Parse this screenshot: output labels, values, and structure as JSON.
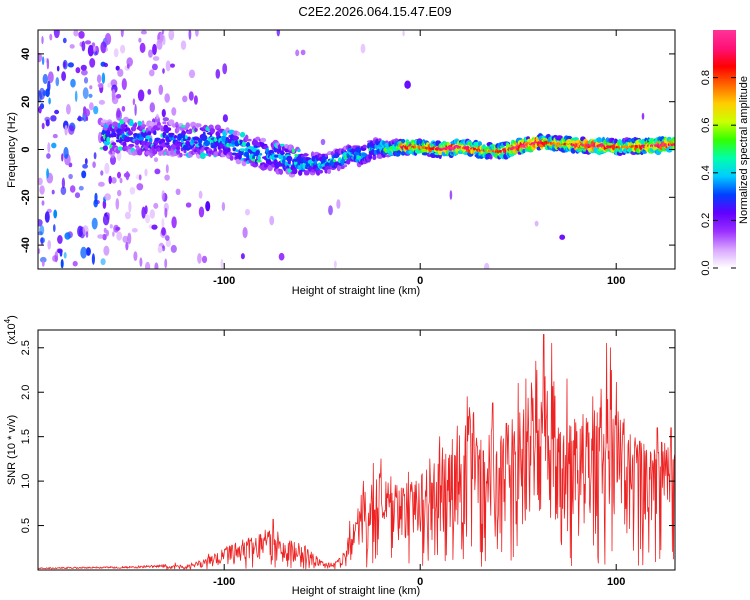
{
  "title": "C2E2.2026.064.15.47.E09",
  "chart_data": [
    {
      "type": "heatmap",
      "name": "spectrogram",
      "xlabel": "Height of straight line (km)",
      "ylabel": "Frequency (Hz)",
      "xlim": [
        -195,
        130
      ],
      "ylim": [
        -50,
        50
      ],
      "xticks": [
        -100,
        0,
        100
      ],
      "xtick_labels": [
        "-100",
        "0",
        "100"
      ],
      "yticks": [
        -40,
        -20,
        0,
        20,
        40
      ],
      "ytick_labels": [
        "-40",
        "-20",
        "0",
        "20",
        "40"
      ],
      "ridge": {
        "x": [
          -160,
          -150,
          -140,
          -130,
          -120,
          -110,
          -100,
          -90,
          -80,
          -70,
          -60,
          -50,
          -45,
          -40,
          -35,
          -30,
          -25,
          -20,
          -15,
          -10,
          0,
          10,
          20,
          40,
          60,
          80,
          100,
          130
        ],
        "y": [
          5,
          6,
          4,
          5,
          3,
          4,
          3,
          0,
          -2,
          -4,
          -6,
          -6,
          -5,
          -4,
          -2,
          -3,
          0,
          1,
          0,
          1,
          1,
          0,
          1,
          -1,
          3,
          2,
          1,
          2
        ]
      },
      "colorbar": {
        "label": "Normalized spectral amplitude",
        "range": [
          0,
          1
        ],
        "ticks": [
          0.0,
          0.2,
          0.4,
          0.6,
          0.8
        ],
        "tick_labels": [
          "0.0",
          "0.2",
          "0.4",
          "0.6",
          "0.8"
        ],
        "colors": [
          "#ffffff",
          "#d9a6ff",
          "#9b30ff",
          "#6000ff",
          "#0040ff",
          "#00ccff",
          "#00ffaa",
          "#33ff00",
          "#ccff00",
          "#ffcc00",
          "#ff6600",
          "#ff0000",
          "#ff1177",
          "#ff3399"
        ]
      }
    },
    {
      "type": "line",
      "name": "snr",
      "xlabel": "Height of straight line (km)",
      "ylabel": "SNR (10 * v/v)",
      "multiplier_label": "(x10",
      "multiplier_exp": "4",
      "multiplier_close": ")",
      "color": "#ee2222",
      "xlim": [
        -195,
        130
      ],
      "ylim": [
        0,
        2.7
      ],
      "xticks": [
        -100,
        0,
        100
      ],
      "xtick_labels": [
        "-100",
        "0",
        "100"
      ],
      "yticks": [
        0.5,
        1.0,
        1.5,
        2.0,
        2.5
      ],
      "ytick_labels": [
        "0.5",
        "1.0",
        "1.5",
        "2.0",
        "2.5"
      ],
      "envelope": {
        "x": [
          -195,
          -150,
          -125,
          -110,
          -100,
          -90,
          -80,
          -75,
          -70,
          -60,
          -50,
          -45,
          -40,
          -35,
          -30,
          -25,
          -20,
          -10,
          0,
          10,
          20,
          25,
          30,
          40,
          50,
          55,
          60,
          65,
          70,
          80,
          90,
          95,
          100,
          105,
          110,
          120,
          125,
          130
        ],
        "y": [
          0.02,
          0.03,
          0.05,
          0.12,
          0.25,
          0.35,
          0.42,
          0.5,
          0.35,
          0.3,
          0.1,
          0.08,
          0.15,
          0.5,
          0.85,
          1.0,
          1.15,
          0.95,
          1.1,
          1.35,
          1.6,
          1.9,
          1.7,
          1.6,
          1.75,
          2.1,
          2.3,
          2.55,
          2.0,
          1.7,
          1.9,
          2.45,
          2.2,
          1.6,
          1.5,
          1.4,
          1.5,
          1.6
        ]
      },
      "peaks": [
        {
          "x": -125,
          "y": 0.08
        },
        {
          "x": -108,
          "y": 0.18
        },
        {
          "x": -96,
          "y": 0.28
        },
        {
          "x": -86,
          "y": 0.36
        },
        {
          "x": -79,
          "y": 0.45
        },
        {
          "x": -75,
          "y": 0.57
        },
        {
          "x": -62,
          "y": 0.3
        },
        {
          "x": -36,
          "y": 0.55
        },
        {
          "x": -29,
          "y": 1.0
        },
        {
          "x": -24,
          "y": 1.2
        },
        {
          "x": -20,
          "y": 1.25
        },
        {
          "x": -15,
          "y": 1.05
        },
        {
          "x": -6,
          "y": 1.1
        },
        {
          "x": 5,
          "y": 1.25
        },
        {
          "x": 10,
          "y": 1.5
        },
        {
          "x": 19,
          "y": 1.62
        },
        {
          "x": 24,
          "y": 1.95
        },
        {
          "x": 27,
          "y": 1.75
        },
        {
          "x": 37,
          "y": 1.88
        },
        {
          "x": 44,
          "y": 1.65
        },
        {
          "x": 50,
          "y": 2.1
        },
        {
          "x": 54,
          "y": 2.15
        },
        {
          "x": 59,
          "y": 2.35
        },
        {
          "x": 63,
          "y": 2.65
        },
        {
          "x": 67,
          "y": 2.55
        },
        {
          "x": 75,
          "y": 2.15
        },
        {
          "x": 83,
          "y": 1.75
        },
        {
          "x": 88,
          "y": 1.95
        },
        {
          "x": 95,
          "y": 2.55
        },
        {
          "x": 97,
          "y": 2.5
        },
        {
          "x": 104,
          "y": 1.7
        },
        {
          "x": 112,
          "y": 1.45
        },
        {
          "x": 121,
          "y": 1.6
        },
        {
          "x": 128,
          "y": 1.6
        }
      ]
    }
  ]
}
